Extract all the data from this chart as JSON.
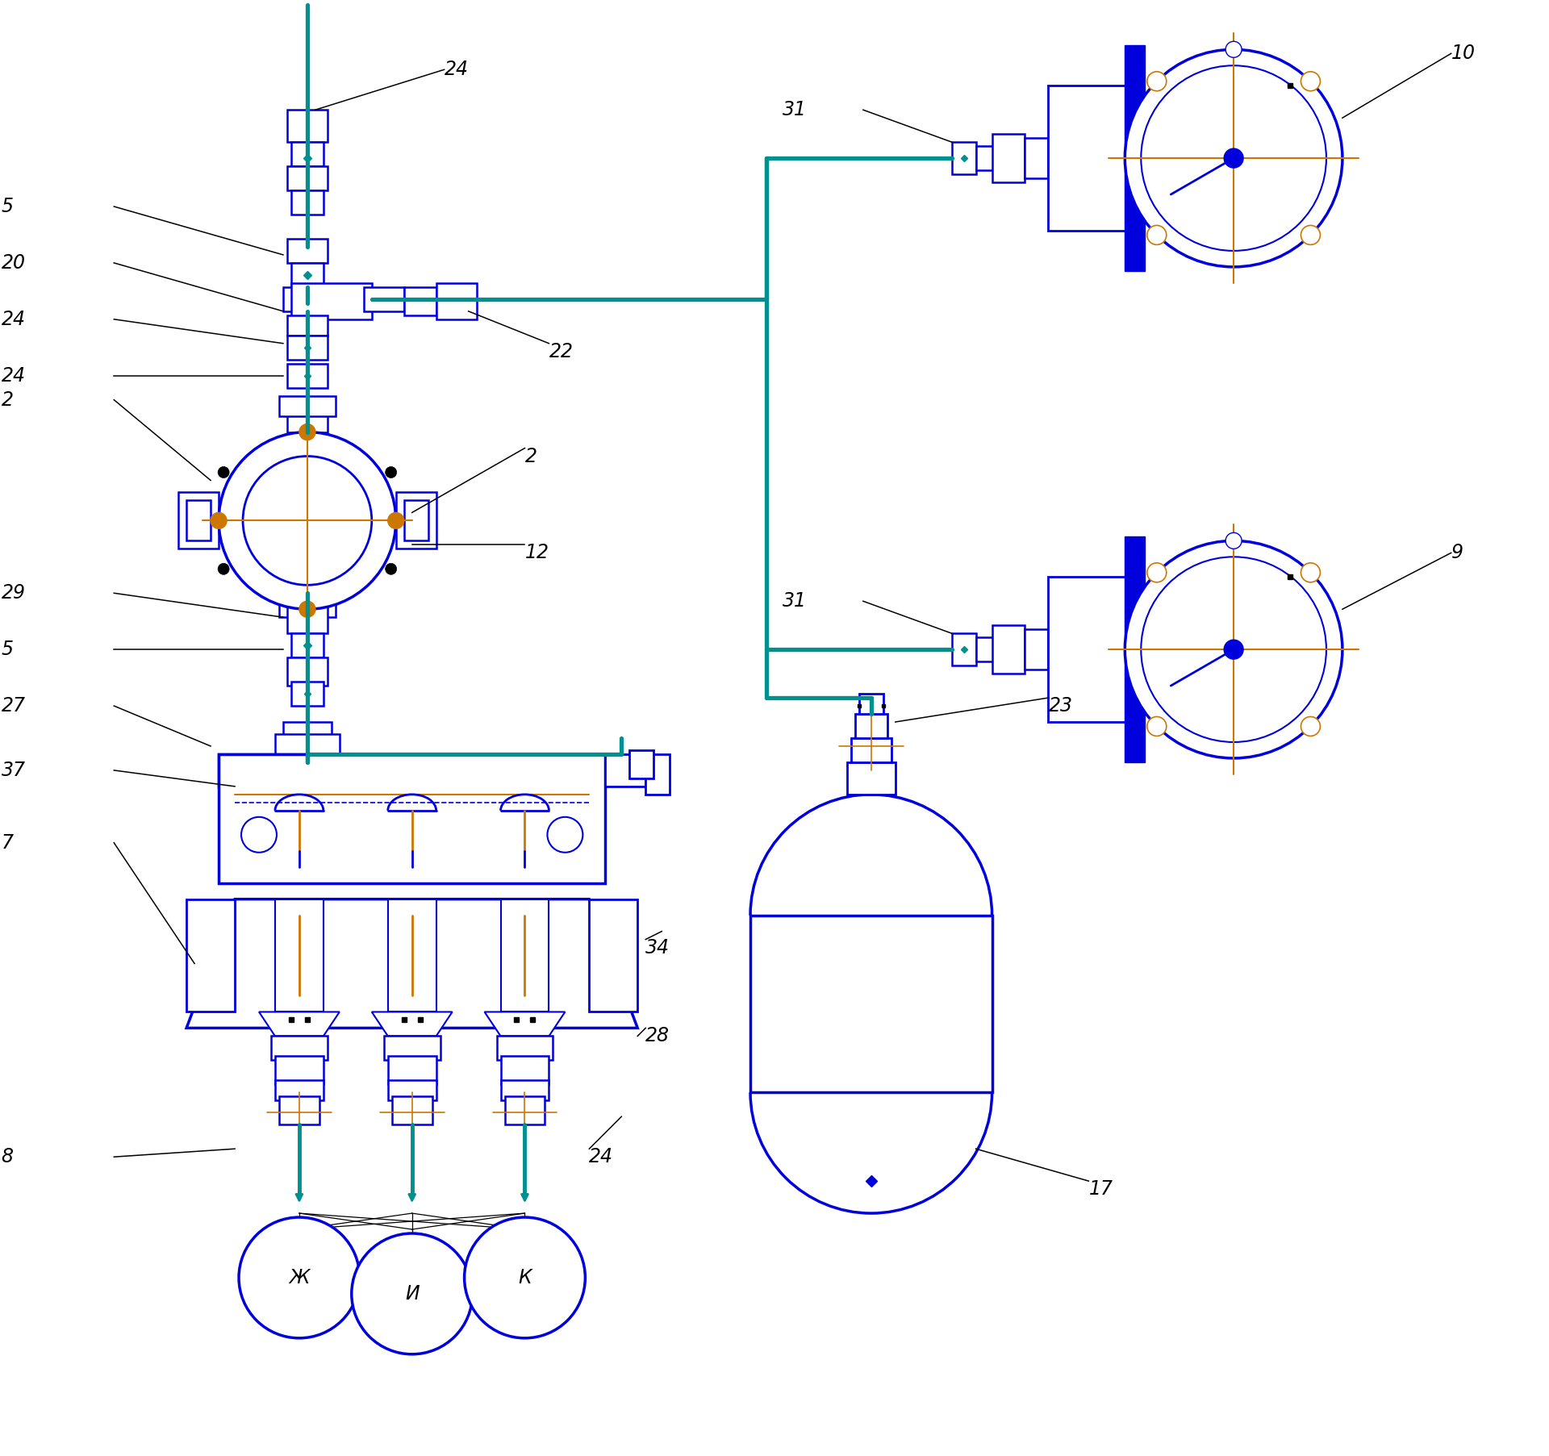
{
  "blue": "#0000dd",
  "teal": "#009090",
  "orange": "#cc7700",
  "black": "#000000",
  "white": "#ffffff",
  "fig_w": 19.2,
  "fig_h": 18.05,
  "dpi": 100,
  "xlim": [
    0,
    192
  ],
  "ylim": [
    0,
    180.5
  ],
  "label_fontsize": 17
}
